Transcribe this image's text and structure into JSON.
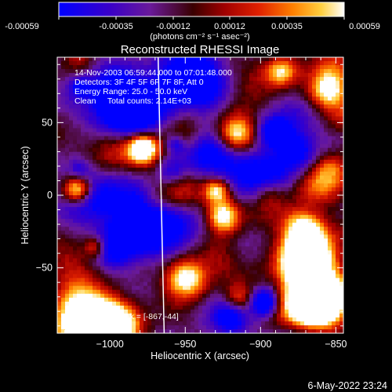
{
  "colorbar": {
    "ticks": [
      "-0.00059",
      "-0.00035",
      "-0.00012",
      "0.00012",
      "0.00035",
      "0.00059"
    ],
    "unit_label": "(photons cm⁻² s⁻¹ asec⁻²)"
  },
  "chart_data": {
    "type": "heatmap",
    "title": "Reconstructed RHESSI Image",
    "xlabel": "Heliocentric X (arcsec)",
    "ylabel": "Heliocentric Y (arcsec)",
    "xlim": [
      -1035,
      -845
    ],
    "ylim": [
      -95,
      95
    ],
    "x_ticks": [
      -1000,
      -950,
      -900,
      -850
    ],
    "y_ticks": [
      50,
      0,
      -50
    ],
    "x_tick_labels": [
      "−1000",
      "−950",
      "−900",
      "−850"
    ],
    "y_tick_labels": [
      "50",
      "0",
      "−50"
    ],
    "colormap": "rainbow-blue-to-white",
    "color_range": [
      -0.00059,
      0.00059
    ],
    "limb_line": {
      "x_top": -968,
      "x_bottom": -964
    },
    "peak": {
      "x": -867,
      "y": -44
    },
    "annotations": [
      "14-Nov-2003 06:59:44.000 to 07:01:48.000",
      "Detectors: 3F 4F 5F 6F 7F 8F, Att 0",
      "Energy Range: 25.0 - 50.0 keV",
      "Clean     Total counts: 2.14E+03",
      "Position of Peak = [-867,-44]"
    ]
  },
  "footer": {
    "timestamp": "6-May-2022 23:24"
  }
}
